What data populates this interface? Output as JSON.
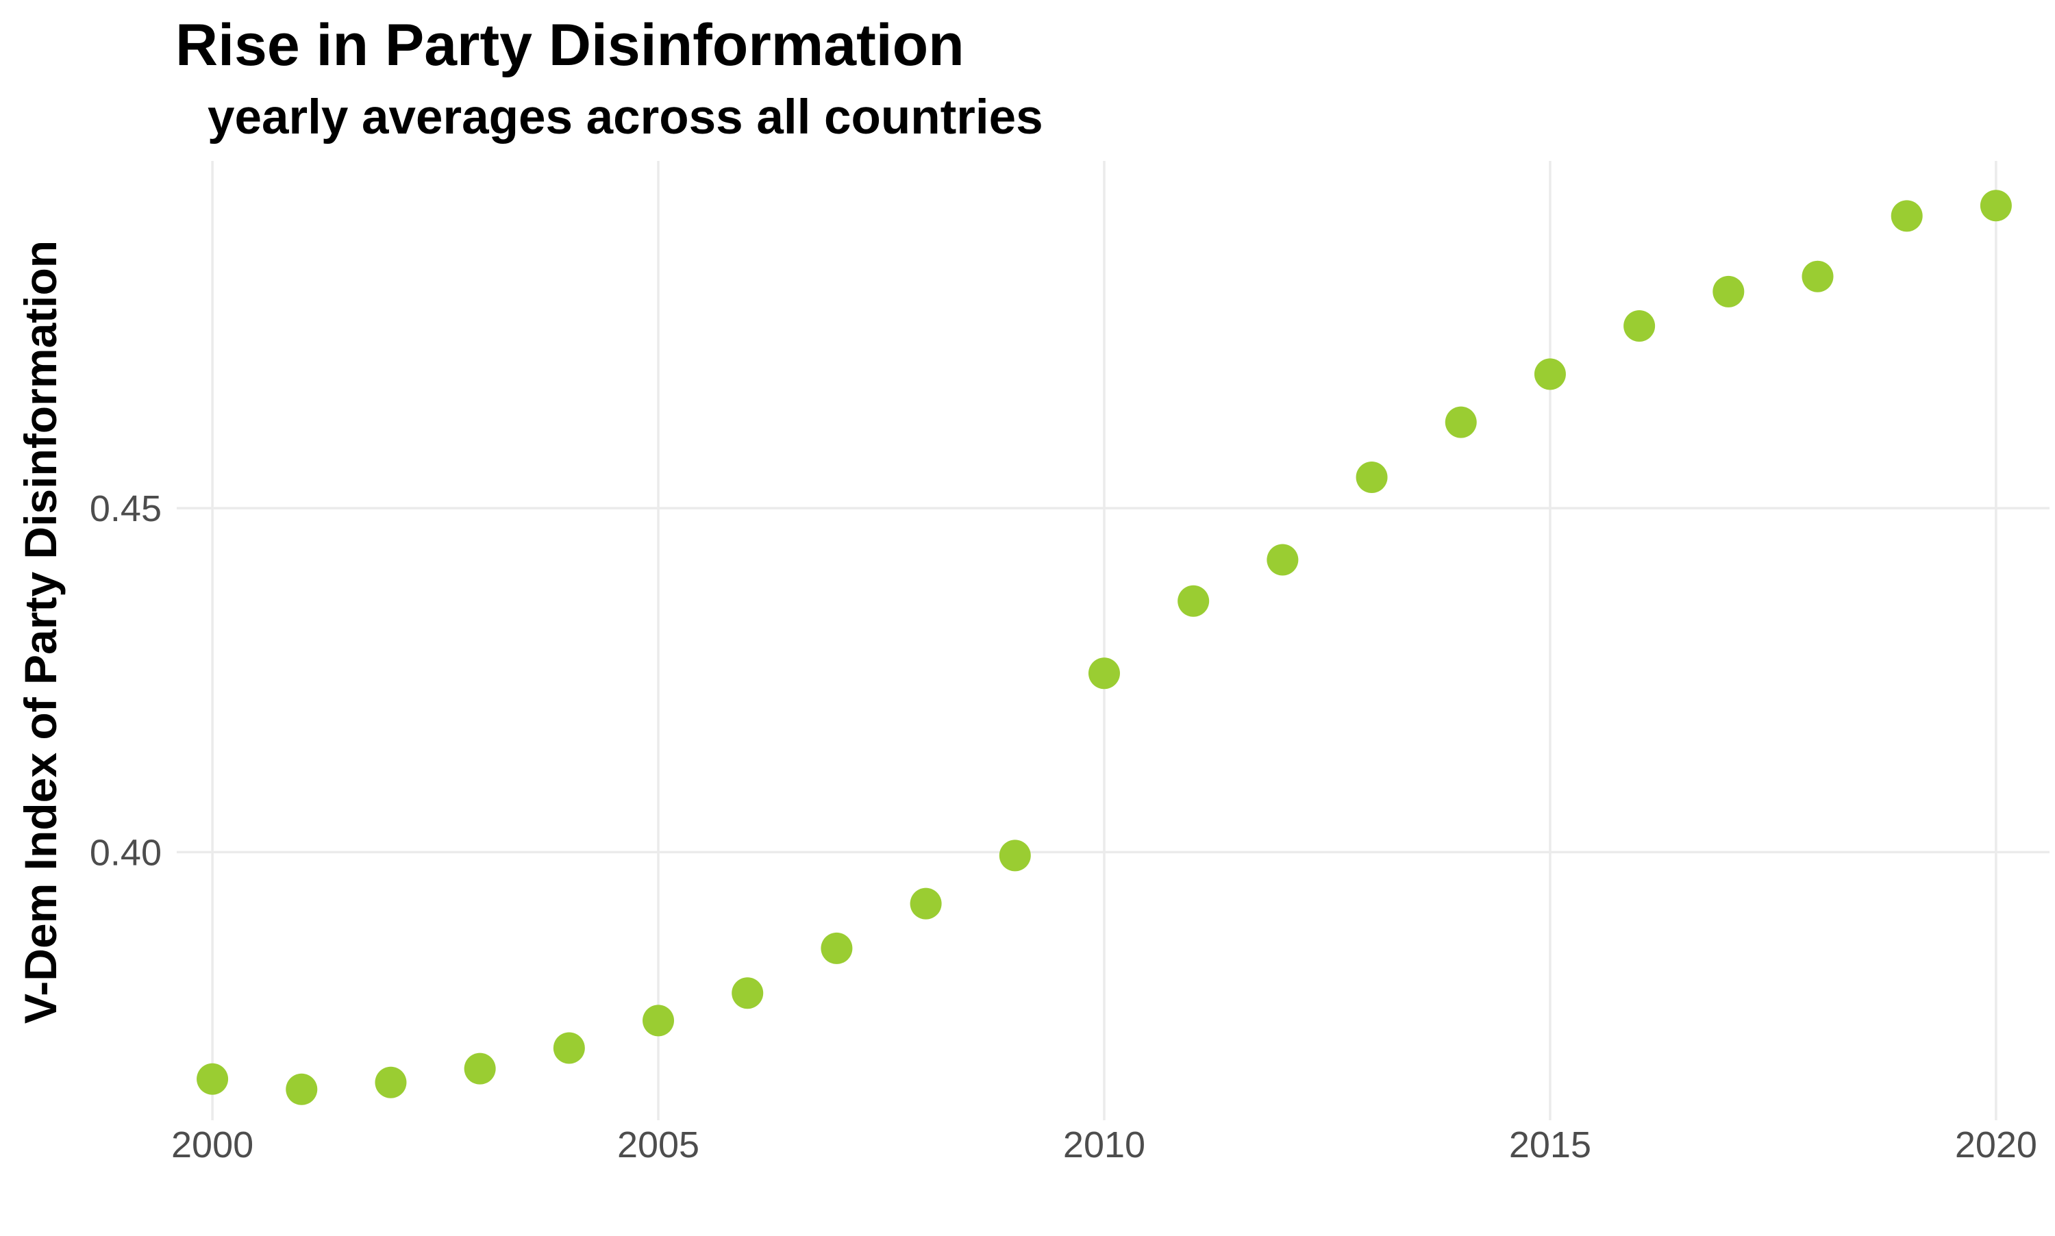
{
  "chart_data": {
    "type": "scatter",
    "title": "Rise in Party Disinformation",
    "subtitle": "yearly averages across all countries",
    "xlabel": "",
    "ylabel": "V-Dem Index of Party Disinformation",
    "x": [
      2000,
      2001,
      2002,
      2003,
      2004,
      2005,
      2006,
      2007,
      2008,
      2009,
      2010,
      2011,
      2012,
      2013,
      2014,
      2015,
      2016,
      2017,
      2018,
      2019,
      2020
    ],
    "y": [
      0.367,
      0.3655,
      0.3665,
      0.3685,
      0.3715,
      0.3755,
      0.3795,
      0.386,
      0.3925,
      0.3995,
      0.426,
      0.4365,
      0.4425,
      0.4545,
      0.4625,
      0.4695,
      0.4765,
      0.4815,
      0.4837,
      0.4925,
      0.494
    ],
    "xticks": [
      "2000",
      "2005",
      "2010",
      "2015",
      "2020"
    ],
    "yticks": [
      "0.40",
      "0.45"
    ],
    "xlim": [
      1999.6,
      2020.6
    ],
    "ylim": [
      0.361,
      0.5005
    ],
    "grid": true,
    "legend": "none",
    "point_color": "#9acd32",
    "grid_color": "#ebebeb",
    "tick_color": "#4d4d4d"
  }
}
